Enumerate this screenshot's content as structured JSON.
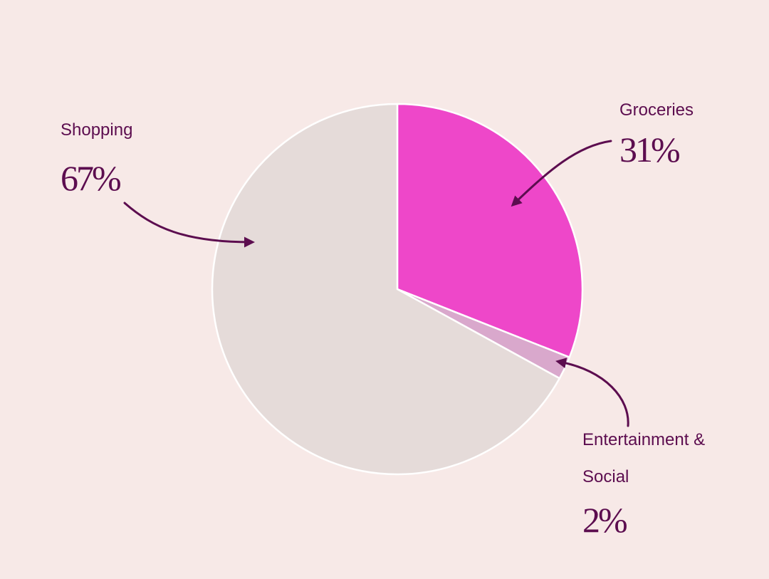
{
  "chart_data": {
    "type": "pie",
    "categories": [
      "Groceries",
      "Entertainment & Social",
      "Shopping"
    ],
    "values": [
      31,
      2,
      67
    ],
    "value_labels": [
      "31%",
      "2%",
      "67%"
    ],
    "colors": [
      "#ee47c9",
      "#d9a8cc",
      "#e5dbd9"
    ]
  }
}
